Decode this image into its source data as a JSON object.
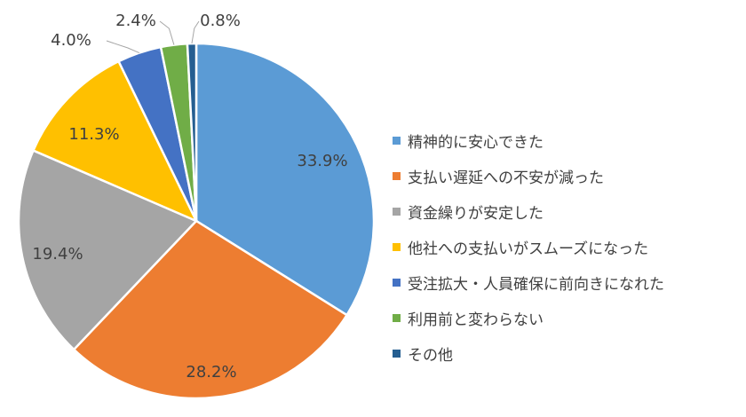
{
  "chart_data": {
    "type": "pie",
    "start": "12 o'clock",
    "direction": "clockwise",
    "legend_position": "right",
    "slices": [
      {
        "name": "精神的に安心できた",
        "value": 33.9,
        "label": "33.9%",
        "color": "#5B9BD5"
      },
      {
        "name": "支払い遅延への不安が減った",
        "value": 28.2,
        "label": "28.2%",
        "color": "#ED7D31"
      },
      {
        "name": "資金繰りが安定した",
        "value": 19.4,
        "label": "19.4%",
        "color": "#A5A5A5"
      },
      {
        "name": "他社への支払いがスムーズになった",
        "value": 11.3,
        "label": "11.3%",
        "color": "#FFC000"
      },
      {
        "name": "受注拡大・人員確保に前向きになれた",
        "value": 4.0,
        "label": "4.0%",
        "color": "#4472C4"
      },
      {
        "name": "利用前と変わらない",
        "value": 2.4,
        "label": "2.4%",
        "color": "#70AD47"
      },
      {
        "name": "その他",
        "value": 0.8,
        "label": "0.8%",
        "color": "#255E91"
      }
    ]
  }
}
